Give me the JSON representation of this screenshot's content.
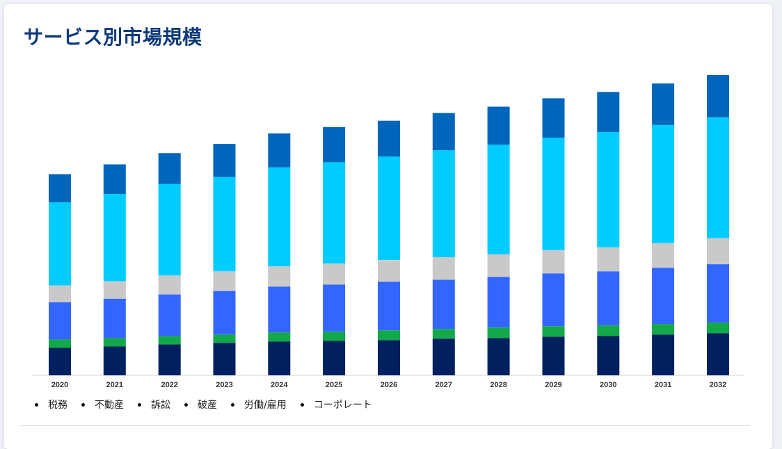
{
  "page": {
    "title": "サービス別市場規模"
  },
  "chart_data": {
    "type": "bar",
    "stacked": true,
    "title": "サービス別市場規模",
    "xlabel": "",
    "ylabel": "",
    "categories": [
      "2020",
      "2021",
      "2022",
      "2023",
      "2024",
      "2025",
      "2026",
      "2027",
      "2028",
      "2029",
      "2030",
      "2031",
      "2032"
    ],
    "ylim": [
      0,
      425
    ],
    "grid": false,
    "legend_position": "bottom-left",
    "series": [
      {
        "name": "税務",
        "color": "#002060",
        "values": [
          39,
          41,
          44,
          46,
          48,
          49,
          50,
          52,
          53,
          55,
          56,
          58,
          60
        ]
      },
      {
        "name": "不動産",
        "color": "#13a84a",
        "values": [
          12,
          12,
          12,
          12,
          13,
          13,
          14,
          14,
          15,
          15,
          15,
          15,
          15
        ]
      },
      {
        "name": "訴訟",
        "color": "#3366ff",
        "values": [
          53,
          56,
          59,
          62,
          65,
          67,
          69,
          70,
          72,
          75,
          77,
          80,
          83
        ]
      },
      {
        "name": "破産",
        "color": "#c9c9c9",
        "values": [
          24,
          25,
          27,
          28,
          29,
          30,
          31,
          32,
          32,
          33,
          34,
          35,
          37
        ]
      },
      {
        "name": "労働/雇用",
        "color": "#00ccff",
        "values": [
          118,
          124,
          130,
          134,
          141,
          144,
          147,
          152,
          156,
          160,
          164,
          168,
          172
        ]
      },
      {
        "name": "コーポレート",
        "color": "#0066bb",
        "values": [
          40,
          42,
          44,
          47,
          48,
          50,
          51,
          53,
          54,
          56,
          57,
          59,
          60
        ]
      }
    ]
  }
}
